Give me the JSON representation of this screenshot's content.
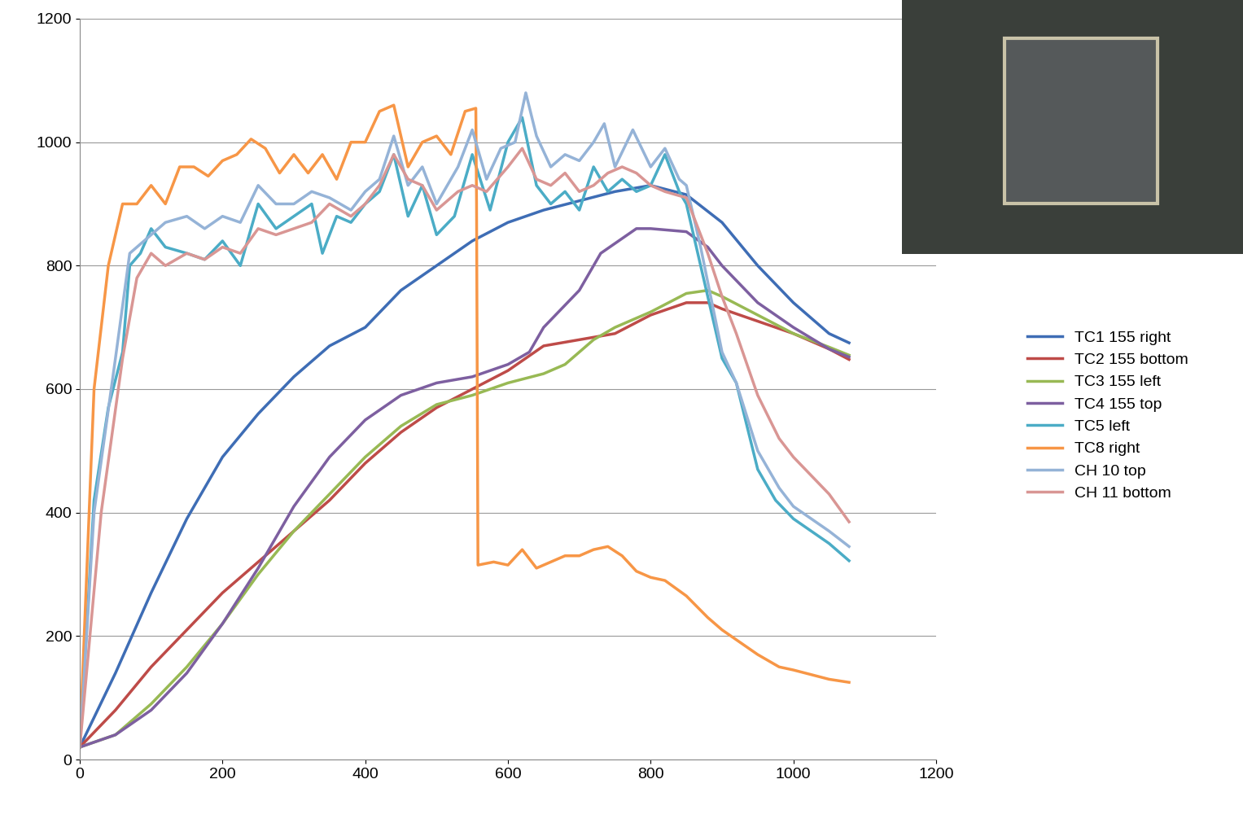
{
  "chart_data": {
    "type": "line",
    "xlim": [
      0,
      1200
    ],
    "xticks": [
      0,
      200,
      400,
      600,
      800,
      1000,
      1200
    ],
    "ylim": [
      0,
      1200
    ],
    "yticks": [
      0,
      200,
      400,
      600,
      800,
      1000,
      1200
    ],
    "grid": "y",
    "legend": "right",
    "series": [
      {
        "name": "TC1 155 right",
        "color": "#3E6DB5",
        "x": [
          0,
          50,
          100,
          150,
          200,
          250,
          300,
          350,
          400,
          450,
          500,
          550,
          600,
          650,
          700,
          750,
          800,
          850,
          900,
          950,
          1000,
          1050,
          1078
        ],
        "values": [
          20,
          140,
          270,
          390,
          490,
          560,
          620,
          670,
          700,
          760,
          800,
          840,
          870,
          890,
          905,
          920,
          930,
          915,
          870,
          800,
          740,
          690,
          675
        ]
      },
      {
        "name": "TC2 155 bottom",
        "color": "#BE4B48",
        "x": [
          0,
          50,
          100,
          150,
          200,
          250,
          300,
          350,
          400,
          450,
          500,
          550,
          600,
          650,
          700,
          750,
          800,
          850,
          880,
          900,
          950,
          1000,
          1050,
          1078
        ],
        "values": [
          20,
          80,
          150,
          210,
          270,
          320,
          370,
          420,
          480,
          530,
          570,
          600,
          630,
          670,
          680,
          690,
          720,
          740,
          740,
          730,
          710,
          690,
          665,
          648
        ]
      },
      {
        "name": "TC3 155 left",
        "color": "#98B954",
        "x": [
          0,
          50,
          100,
          150,
          200,
          250,
          300,
          350,
          400,
          450,
          500,
          550,
          600,
          650,
          680,
          720,
          750,
          800,
          850,
          880,
          900,
          950,
          1000,
          1050,
          1078
        ],
        "values": [
          20,
          40,
          90,
          150,
          220,
          300,
          370,
          430,
          490,
          540,
          575,
          590,
          610,
          625,
          640,
          680,
          700,
          725,
          755,
          760,
          750,
          720,
          690,
          668,
          655
        ]
      },
      {
        "name": "TC4 155 top",
        "color": "#7D5FA0",
        "x": [
          0,
          50,
          100,
          150,
          200,
          250,
          300,
          350,
          400,
          450,
          500,
          550,
          600,
          630,
          650,
          700,
          730,
          780,
          800,
          850,
          880,
          900,
          950,
          1000,
          1050,
          1078
        ],
        "values": [
          20,
          40,
          80,
          140,
          220,
          310,
          410,
          490,
          550,
          590,
          610,
          620,
          640,
          660,
          700,
          760,
          820,
          860,
          860,
          855,
          830,
          800,
          740,
          700,
          665,
          652
        ]
      },
      {
        "name": "TC5 left",
        "color": "#4BACC6",
        "x": [
          0,
          20,
          40,
          60,
          70,
          85,
          100,
          120,
          150,
          175,
          200,
          225,
          250,
          275,
          300,
          325,
          340,
          360,
          380,
          400,
          420,
          440,
          460,
          480,
          500,
          525,
          550,
          575,
          600,
          620,
          640,
          660,
          680,
          700,
          720,
          740,
          760,
          780,
          800,
          820,
          840,
          850,
          870,
          900,
          920,
          950,
          975,
          1000,
          1050,
          1078
        ],
        "values": [
          20,
          420,
          570,
          660,
          800,
          820,
          860,
          830,
          820,
          810,
          840,
          800,
          900,
          860,
          880,
          900,
          820,
          880,
          870,
          900,
          920,
          980,
          880,
          930,
          850,
          880,
          980,
          890,
          1000,
          1040,
          930,
          900,
          920,
          890,
          960,
          920,
          940,
          920,
          930,
          980,
          920,
          900,
          800,
          650,
          610,
          470,
          420,
          390,
          350,
          322
        ]
      },
      {
        "name": "TC8 right",
        "color": "#F79646",
        "x": [
          0,
          20,
          40,
          60,
          80,
          100,
          120,
          140,
          160,
          180,
          200,
          220,
          240,
          260,
          280,
          300,
          320,
          340,
          360,
          380,
          400,
          420,
          440,
          460,
          480,
          500,
          520,
          540,
          555,
          556,
          558,
          580,
          600,
          620,
          640,
          660,
          680,
          700,
          720,
          740,
          760,
          780,
          800,
          820,
          850,
          880,
          900,
          950,
          980,
          1000,
          1050,
          1078
        ],
        "values": [
          20,
          600,
          800,
          900,
          900,
          930,
          900,
          960,
          960,
          945,
          970,
          980,
          1005,
          990,
          950,
          980,
          950,
          980,
          940,
          1000,
          1000,
          1050,
          1060,
          960,
          1000,
          1010,
          980,
          1050,
          1055,
          900,
          315,
          320,
          315,
          340,
          310,
          320,
          330,
          330,
          340,
          345,
          330,
          305,
          295,
          290,
          265,
          230,
          210,
          170,
          150,
          145,
          130,
          125
        ]
      },
      {
        "name": "CH 10 top",
        "color": "#95B3D7",
        "x": [
          0,
          20,
          50,
          70,
          100,
          120,
          150,
          175,
          200,
          225,
          250,
          275,
          300,
          325,
          350,
          380,
          400,
          420,
          440,
          460,
          480,
          500,
          530,
          550,
          570,
          590,
          610,
          625,
          640,
          660,
          680,
          700,
          720,
          735,
          750,
          775,
          800,
          820,
          840,
          850,
          870,
          900,
          920,
          950,
          980,
          1000,
          1050,
          1078
        ],
        "values": [
          20,
          400,
          650,
          820,
          850,
          870,
          880,
          860,
          880,
          870,
          930,
          900,
          900,
          920,
          910,
          890,
          920,
          940,
          1010,
          930,
          960,
          900,
          960,
          1020,
          940,
          990,
          1000,
          1080,
          1010,
          960,
          980,
          970,
          1000,
          1030,
          960,
          1020,
          960,
          990,
          940,
          930,
          830,
          660,
          610,
          500,
          440,
          410,
          370,
          345
        ]
      },
      {
        "name": "CH 11 bottom",
        "color": "#D99694",
        "x": [
          0,
          30,
          60,
          80,
          100,
          120,
          150,
          175,
          200,
          225,
          250,
          275,
          300,
          325,
          350,
          380,
          400,
          420,
          440,
          460,
          480,
          500,
          530,
          550,
          570,
          600,
          620,
          640,
          660,
          680,
          700,
          720,
          740,
          760,
          780,
          800,
          820,
          850,
          880,
          900,
          920,
          950,
          980,
          1000,
          1050,
          1078
        ],
        "values": [
          20,
          400,
          650,
          780,
          820,
          800,
          820,
          810,
          830,
          820,
          860,
          850,
          860,
          870,
          900,
          880,
          900,
          930,
          980,
          940,
          930,
          890,
          920,
          930,
          920,
          960,
          990,
          940,
          930,
          950,
          920,
          930,
          950,
          960,
          950,
          930,
          920,
          910,
          820,
          750,
          690,
          590,
          520,
          490,
          430,
          385
        ]
      }
    ]
  }
}
